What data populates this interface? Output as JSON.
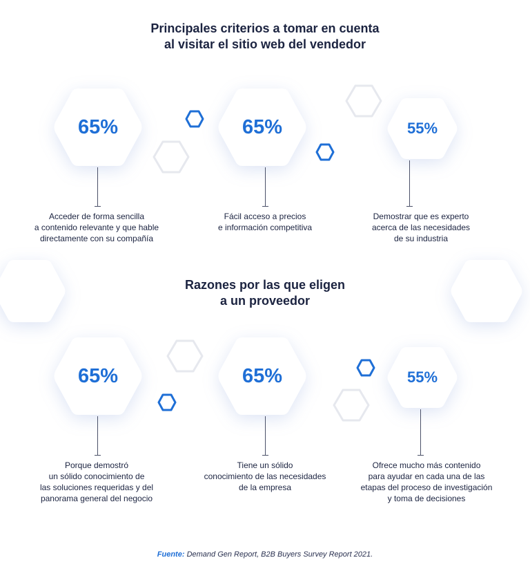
{
  "section1": {
    "title_line1": "Principales criterios a tomar en cuenta",
    "title_line2": "al visitar el sitio web del vendedor",
    "items": [
      {
        "value": "65%",
        "desc": [
          "Acceder de forma sencilla",
          "a contenido relevante y que hable",
          "directamente con su compañía"
        ]
      },
      {
        "value": "65%",
        "desc": [
          "Fácil acceso a precios",
          "e información competitiva"
        ]
      },
      {
        "value": "55%",
        "desc": [
          "Demostrar que es experto",
          "acerca de las necesidades",
          "de su industria"
        ]
      }
    ]
  },
  "section2": {
    "title_line1": "Razones por las que eligen",
    "title_line2": "a un proveedor",
    "items": [
      {
        "value": "65%",
        "desc": [
          "Porque demostró",
          "un sólido conocimiento de",
          "las soluciones requeridas y del",
          "panorama general del negocio"
        ]
      },
      {
        "value": "65%",
        "desc": [
          "Tiene un sólido",
          "conocimiento de las necesidades",
          "de la empresa"
        ]
      },
      {
        "value": "55%",
        "desc": [
          "Ofrece mucho más contenido",
          "para ayudar en cada una de las",
          "etapas del proceso de investigación",
          "y toma de decisiones"
        ]
      }
    ]
  },
  "source": {
    "label": "Fuente:",
    "text": " Demand Gen Report, B2B Buyers Survey Report 2021."
  },
  "colors": {
    "accent": "#1f6fd6",
    "text": "#1b2340",
    "hex_fill": "#ffffff",
    "deco_grey": "#e6e8ee"
  }
}
